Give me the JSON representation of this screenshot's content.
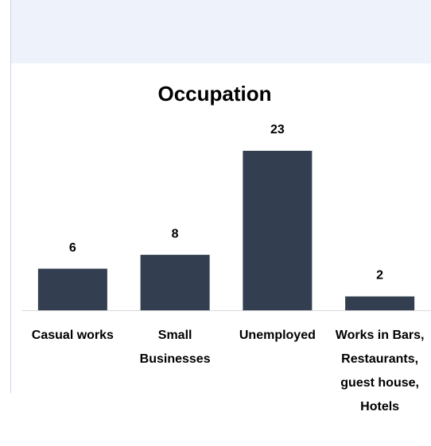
{
  "chart_data": {
    "type": "bar",
    "title": "Occupation",
    "categories": [
      "Casual works",
      "Small Businesses",
      "Unemployed",
      "Works in Bars, Restaurants, guest house, Hotels"
    ],
    "values": [
      6,
      8,
      23,
      2
    ],
    "color": "#333f50"
  }
}
